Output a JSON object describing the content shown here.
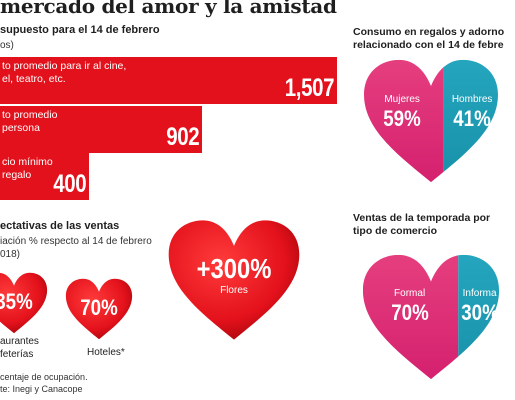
{
  "title": "mercado del amor y la amistad",
  "budget": {
    "title": "supuesto para el 14 de febrero",
    "subtitle": "os)"
  },
  "expectations": {
    "title": "ectativas de las ventas",
    "subtitle_line1": "iación % respecto al 14 de febrero",
    "subtitle_line2": "018)"
  },
  "right_top": {
    "title_line1": "Consumo en regalos y adorno",
    "title_line2": "relacionado con el 14 de febre"
  },
  "right_bottom": {
    "title_line1": "Ventas  de la temporada por",
    "title_line2": "tipo de comercio"
  },
  "notes": {
    "line1": "centaje de ocupación.",
    "line2": "te: Inegi y Canacope"
  },
  "chart_data": [
    {
      "type": "bar",
      "orientation": "horizontal",
      "categories": [
        [
          "to promedio para ir al cine,",
          "el, teatro, etc."
        ],
        [
          "to promedio",
          "persona"
        ],
        [
          "cio mínimo",
          "regalo"
        ]
      ],
      "values": [
        1507,
        902,
        400
      ],
      "value_labels": [
        "1,507",
        "902",
        "400"
      ],
      "color": "#e3111b"
    },
    {
      "type": "pie",
      "series": [
        {
          "name": "aurantes feterías",
          "name_line1": "aurantes",
          "name_line2": "feterías",
          "value": 35,
          "label": "35%"
        },
        {
          "name": "Hoteles*",
          "value": 70,
          "label": "70%"
        },
        {
          "name": "Flores",
          "value": 300,
          "label": "+300%"
        }
      ],
      "color": "#e3111b"
    },
    {
      "type": "pie",
      "series": [
        {
          "name": "Mujeres",
          "value": 59,
          "label": "59%",
          "color": "#d41f6e"
        },
        {
          "name": "Hombres",
          "value": 41,
          "label": "41%",
          "color": "#1790a8"
        }
      ]
    },
    {
      "type": "pie",
      "series": [
        {
          "name": "Formal",
          "value": 70,
          "label": "70%",
          "color": "#d41f6e"
        },
        {
          "name": "Informa",
          "value": 30,
          "label": "30%",
          "color": "#1790a8"
        }
      ]
    }
  ]
}
